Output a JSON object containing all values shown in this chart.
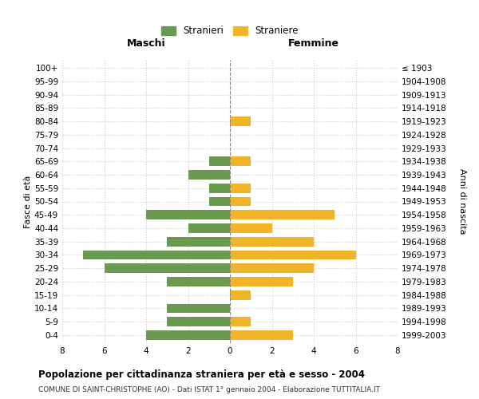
{
  "age_groups": [
    "0-4",
    "5-9",
    "10-14",
    "15-19",
    "20-24",
    "25-29",
    "30-34",
    "35-39",
    "40-44",
    "45-49",
    "50-54",
    "55-59",
    "60-64",
    "65-69",
    "70-74",
    "75-79",
    "80-84",
    "85-89",
    "90-94",
    "95-99",
    "100+"
  ],
  "birth_years": [
    "1999-2003",
    "1994-1998",
    "1989-1993",
    "1984-1988",
    "1979-1983",
    "1974-1978",
    "1969-1973",
    "1964-1968",
    "1959-1963",
    "1954-1958",
    "1949-1953",
    "1944-1948",
    "1939-1943",
    "1934-1938",
    "1929-1933",
    "1924-1928",
    "1919-1923",
    "1914-1918",
    "1909-1913",
    "1904-1908",
    "≤ 1903"
  ],
  "maschi": [
    4,
    3,
    3,
    0,
    3,
    6,
    7,
    3,
    2,
    4,
    1,
    1,
    2,
    1,
    0,
    0,
    0,
    0,
    0,
    0,
    0
  ],
  "femmine": [
    3,
    1,
    0,
    1,
    3,
    4,
    6,
    4,
    2,
    5,
    1,
    1,
    0,
    1,
    0,
    0,
    1,
    0,
    0,
    0,
    0
  ],
  "color_maschi": "#6a9a50",
  "color_femmine": "#f0b429",
  "xlim": 8,
  "title": "Popolazione per cittadinanza straniera per età e sesso - 2004",
  "subtitle": "COMUNE DI SAINT-CHRISTOPHE (AO) - Dati ISTAT 1° gennaio 2004 - Elaborazione TUTTITALIA.IT",
  "ylabel_left": "Fasce di età",
  "ylabel_right": "Anni di nascita",
  "label_maschi": "Stranieri",
  "label_femmine": "Straniere",
  "header_maschi": "Maschi",
  "header_femmine": "Femmine",
  "bg_color": "#ffffff",
  "grid_color": "#cccccc"
}
